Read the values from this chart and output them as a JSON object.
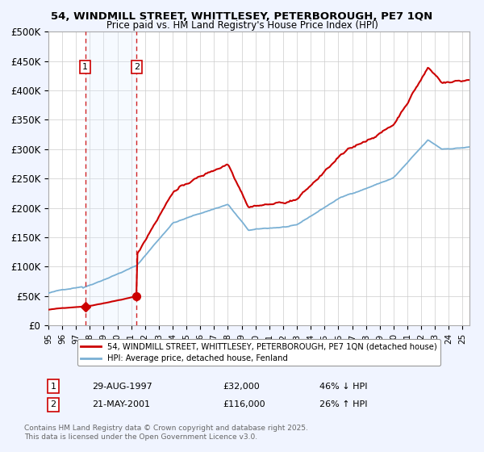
{
  "title_line1": "54, WINDMILL STREET, WHITTLESEY, PETERBOROUGH, PE7 1QN",
  "title_line2": "Price paid vs. HM Land Registry's House Price Index (HPI)",
  "ylim": [
    0,
    500000
  ],
  "yticks": [
    0,
    50000,
    100000,
    150000,
    200000,
    250000,
    300000,
    350000,
    400000,
    450000,
    500000
  ],
  "ytick_labels": [
    "£0",
    "£50K",
    "£100K",
    "£150K",
    "£200K",
    "£250K",
    "£300K",
    "£350K",
    "£400K",
    "£450K",
    "£500K"
  ],
  "sale1_year": 1997.664,
  "sale1_price": 32000,
  "sale2_year": 2001.384,
  "sale2_price": 116000,
  "legend_line1": "54, WINDMILL STREET, WHITTLESEY, PETERBOROUGH, PE7 1QN (detached house)",
  "legend_line2": "HPI: Average price, detached house, Fenland",
  "table_row1": [
    "1",
    "29-AUG-1997",
    "£32,000",
    "46% ↓ HPI"
  ],
  "table_row2": [
    "2",
    "21-MAY-2001",
    "£116,000",
    "26% ↑ HPI"
  ],
  "footer": "Contains HM Land Registry data © Crown copyright and database right 2025.\nThis data is licensed under the Open Government Licence v3.0.",
  "sale_color": "#cc0000",
  "hpi_color": "#7ab0d4",
  "shade_color": "#ddeeff",
  "bg_color": "#f0f4ff",
  "plot_bg": "#ffffff",
  "grid_color": "#cccccc",
  "xlim_start": 1995.0,
  "xlim_end": 2025.5
}
